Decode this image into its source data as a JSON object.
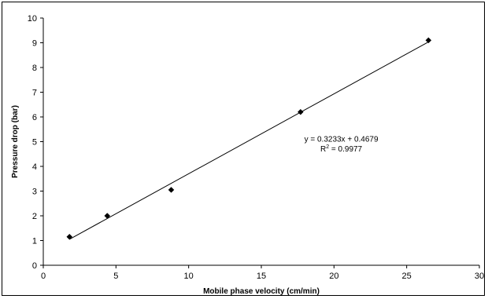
{
  "chart_data": {
    "type": "scatter",
    "title": "",
    "xlabel": "Mobile phase velocity (cm/min)",
    "ylabel": "Pressure drop (bar)",
    "xlim": [
      0,
      30
    ],
    "ylim": [
      0,
      10
    ],
    "xticks": [
      0,
      5,
      10,
      15,
      20,
      25,
      30
    ],
    "yticks": [
      0,
      1,
      2,
      3,
      4,
      5,
      6,
      7,
      8,
      9,
      10
    ],
    "grid": false,
    "legend": "none",
    "series": [
      {
        "marker": "diamond",
        "color": "#000000",
        "points": [
          {
            "x": 1.8,
            "y": 1.15
          },
          {
            "x": 4.4,
            "y": 2.0
          },
          {
            "x": 8.8,
            "y": 3.05
          },
          {
            "x": 17.7,
            "y": 6.2
          },
          {
            "x": 26.5,
            "y": 9.1
          }
        ]
      }
    ],
    "trendline": {
      "type": "linear",
      "slope": 0.3233,
      "intercept": 0.4679,
      "x_range": [
        1.8,
        26.5
      ],
      "equation": "y = 0.3233x + 0.4679",
      "r_squared_prefix": "R",
      "r_squared_sup": "2",
      "r_squared_value": " = 0.9977"
    }
  }
}
